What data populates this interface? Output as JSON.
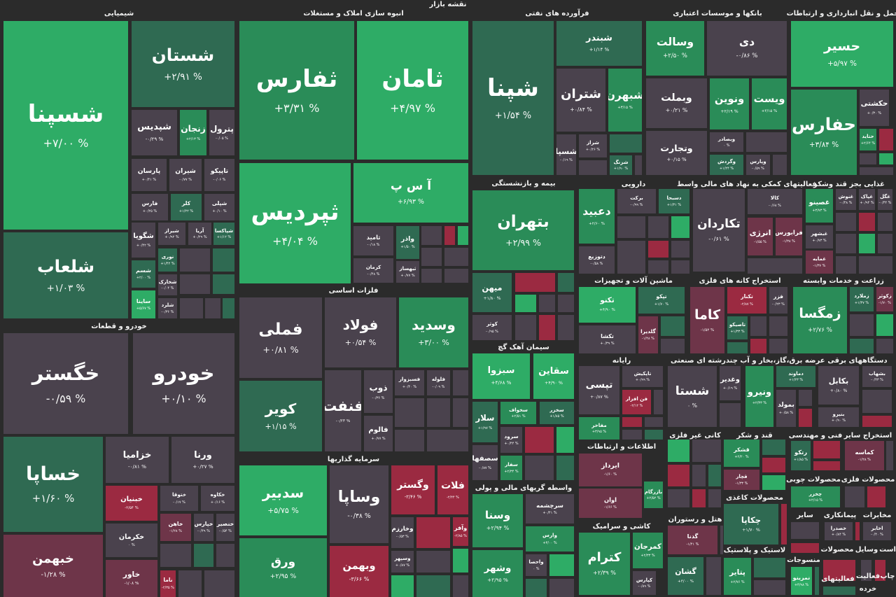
{
  "page_title": "نقشه بازار",
  "colors": {
    "strong-up": "#2eac66",
    "up": "#2a8c58",
    "mild-up": "#2f6a52",
    "neutral": "#4a424d",
    "mild-down": "#6e3549",
    "down": "#9b2a41"
  },
  "sectors": [
    {
      "title": "شیمیایی",
      "stocks": [
        {
          "name": "شسپنا",
          "change": "+۷/۰۰ %",
          "trend": "strong-up"
        },
        {
          "name": "شستان",
          "change": "+۲/۹۱ %",
          "trend": "mild-up"
        },
        {
          "name": "شلعاب",
          "change": "+۱/۰۳ %",
          "trend": "mild-up"
        },
        {
          "name": "شپدیس",
          "change": "-۰/۲۹ %",
          "trend": "neutral"
        },
        {
          "name": "زنجان",
          "change": "+۲/۱۳ %",
          "trend": "up"
        },
        {
          "name": "پترول",
          "change": "-۰/۰۵ %",
          "trend": "neutral"
        },
        {
          "name": "پارسان",
          "change": "+۰/۴۱ %",
          "trend": "neutral"
        },
        {
          "name": "شیران",
          "change": "-۰/۷۷ %",
          "trend": "neutral"
        },
        {
          "name": "تاپیکو",
          "change": "-۰/۰۶ %",
          "trend": "neutral"
        },
        {
          "name": "فارس",
          "change": "+۰/۲۵ %",
          "trend": "neutral"
        },
        {
          "name": "کلر",
          "change": "+۱/۲۲ %",
          "trend": "mild-up"
        },
        {
          "name": "شپلی",
          "change": "+۰/۱۰ %",
          "trend": "neutral"
        },
        {
          "name": "شگویا",
          "change": "+۰/۴۲ %",
          "trend": "neutral"
        },
        {
          "name": "شیراز",
          "change": "+۰/۹۲ %",
          "trend": "neutral"
        },
        {
          "name": "آریا",
          "change": "+۰/۲۹ %",
          "trend": "neutral"
        },
        {
          "name": "شپاکسا",
          "change": "+۱/۱۲ %",
          "trend": "mild-up"
        },
        {
          "name": "شسم",
          "change": "+۲/۰۰ %",
          "trend": "mild-up"
        },
        {
          "name": "نوری",
          "change": "+۱/۴۲ %",
          "trend": "mild-up"
        },
        {
          "name": "شخارک",
          "change": "-۰/۰۴ %",
          "trend": "neutral"
        },
        {
          "name": "ساینا",
          "change": "+۵/۶۷ %",
          "trend": "strong-up"
        },
        {
          "name": "شلرد",
          "change": "-۰/۳۶ %",
          "trend": "neutral"
        }
      ]
    },
    {
      "title": "خودرو و قطعات",
      "stocks": [
        {
          "name": "خگستر",
          "change": "-۰/۵۹ %",
          "trend": "neutral"
        },
        {
          "name": "خودرو",
          "change": "+۰/۱۰ %",
          "trend": "neutral"
        },
        {
          "name": "خساپا",
          "change": "+۱/۶۰ %",
          "trend": "mild-up"
        },
        {
          "name": "خبهمن",
          "change": "-۱/۲۸ %",
          "trend": "mild-down"
        },
        {
          "name": "خزامیا",
          "change": "-۰/۸۱ %",
          "trend": "neutral"
        },
        {
          "name": "ورنا",
          "change": "+۰/۲۷ %",
          "trend": "neutral"
        },
        {
          "name": "خبنیان",
          "change": "-۲/۵۴ %",
          "trend": "down"
        },
        {
          "name": "ختوقا",
          "change": "-۰/۱۷ %",
          "trend": "neutral"
        },
        {
          "name": "خکاوه",
          "change": "+۰/۱۶ %",
          "trend": "neutral"
        },
        {
          "name": "خکرمان",
          "change": "۰ %",
          "trend": "neutral"
        },
        {
          "name": "خاهن",
          "change": "-۱/۲۸ %",
          "trend": "mild-down"
        },
        {
          "name": "خپارس",
          "change": "-۰/۴۹ %",
          "trend": "neutral"
        },
        {
          "name": "خنصیر",
          "change": "-۰/۵۴ %",
          "trend": "neutral"
        },
        {
          "name": "خاور",
          "change": "-۱/۰۸ %",
          "trend": "mild-down"
        },
        {
          "name": "ناما",
          "change": "-۲/۳۵ %",
          "trend": "down"
        }
      ]
    },
    {
      "title": "انبوه سازی املاک و مستغلات",
      "stocks": [
        {
          "name": "ثفارس",
          "change": "+۳/۳۱ %",
          "trend": "up"
        },
        {
          "name": "ثامان",
          "change": "+۴/۹۷ %",
          "trend": "strong-up"
        },
        {
          "name": "ثپردیس",
          "change": "+۴/۰۴ %",
          "trend": "strong-up"
        },
        {
          "name": "آ س پ",
          "change": "+۶/۹۳ %",
          "trend": "strong-up"
        },
        {
          "name": "ثامید",
          "change": "-۰/۱۸ %",
          "trend": "neutral"
        },
        {
          "name": "واذر",
          "change": "+۱/۵۰ %",
          "trend": "mild-up"
        },
        {
          "name": "کرمان",
          "change": "-۰/۴۸ %",
          "trend": "neutral"
        },
        {
          "name": "ثبهساز",
          "change": "+۰/۷۷ %",
          "trend": "neutral"
        }
      ]
    },
    {
      "title": "فلزات اساسی",
      "stocks": [
        {
          "name": "فملی",
          "change": "+۰/۸۱ %",
          "trend": "neutral"
        },
        {
          "name": "فولاد",
          "change": "+۰/۵۴ %",
          "trend": "neutral"
        },
        {
          "name": "وسدید",
          "change": "+۳/۰۰ %",
          "trend": "up"
        },
        {
          "name": "کویر",
          "change": "+۱/۱۵ %",
          "trend": "mild-up"
        },
        {
          "name": "فنفت",
          "change": "-۰/۲۳ %",
          "trend": "neutral"
        },
        {
          "name": "ذوب",
          "change": "-۰/۳۶ %",
          "trend": "neutral"
        },
        {
          "name": "فسبزوار",
          "change": "+۰/۴۰ %",
          "trend": "neutral"
        },
        {
          "name": "فلوله",
          "change": "-۰/۰۹ %",
          "trend": "neutral"
        },
        {
          "name": "فالوم",
          "change": "+۰/۷۷ %",
          "trend": "neutral"
        }
      ]
    },
    {
      "title": "سرمایه گذاریها",
      "stocks": [
        {
          "name": "سدبیر",
          "change": "+۵/۷۵ %",
          "trend": "strong-up"
        },
        {
          "name": "ورق",
          "change": "+۲/۹۵ %",
          "trend": "up"
        },
        {
          "name": "وساپا",
          "change": "-۰/۳۸ %",
          "trend": "neutral"
        },
        {
          "name": "وبهمن",
          "change": "-۳/۶۶ %",
          "trend": "down"
        },
        {
          "name": "وگستر",
          "change": "-۳/۴۶ %",
          "trend": "down"
        },
        {
          "name": "فلات",
          "change": "-۲/۴۴ %",
          "trend": "down"
        },
        {
          "name": "وخارزم",
          "change": "-۰/۵۳ %",
          "trend": "neutral"
        },
        {
          "name": "وآفر",
          "change": "-۲/۸۵ %",
          "trend": "down"
        },
        {
          "name": "وسپهر",
          "change": "+۰/۸۷ %",
          "trend": "neutral"
        }
      ]
    },
    {
      "title": "فرآورده های نفتی",
      "stocks": [
        {
          "name": "شپنا",
          "change": "+۱/۵۴ %",
          "trend": "mild-up"
        },
        {
          "name": "شبندر",
          "change": "+۱/۱۴ %",
          "trend": "mild-up"
        },
        {
          "name": "شتران",
          "change": "+۰/۸۴ %",
          "trend": "neutral"
        },
        {
          "name": "شبهرن",
          "change": "+۳/۱۵ %",
          "trend": "up"
        },
        {
          "name": "شسپا",
          "change": "-۰/۱۹ %",
          "trend": "neutral"
        },
        {
          "name": "شراز",
          "change": "+۰/۲۶ %",
          "trend": "neutral"
        },
        {
          "name": "شزنگ",
          "change": "+۱/۹۰ %",
          "trend": "mild-up"
        }
      ]
    },
    {
      "title": "بانکها و موسسات اعتباری",
      "stocks": [
        {
          "name": "وسالت",
          "change": "+۲/۵۰ %",
          "trend": "up"
        },
        {
          "name": "دی",
          "change": "-۰/۸۶ %",
          "trend": "neutral"
        },
        {
          "name": "وبملت",
          "change": "+۰/۲۱ %",
          "trend": "neutral"
        },
        {
          "name": "ونوین",
          "change": "+۲/۱۹ %",
          "trend": "up"
        },
        {
          "name": "ویست",
          "change": "+۳/۱۵ %",
          "trend": "up"
        },
        {
          "name": "وتجارت",
          "change": "+۰/۱۵ %",
          "trend": "neutral"
        },
        {
          "name": "وبصادر",
          "change": "۰ %",
          "trend": "neutral"
        },
        {
          "name": "وگردش",
          "change": "+۱/۲۴ %",
          "trend": "mild-up"
        },
        {
          "name": "وپارس",
          "change": "-۰/۵۹ %",
          "trend": "neutral"
        }
      ]
    },
    {
      "title": "حمل و نقل انبارداری و ارتباطات",
      "stocks": [
        {
          "name": "حسیر",
          "change": "+۵/۹۷ %",
          "trend": "strong-up"
        },
        {
          "name": "حفارس",
          "change": "+۳/۸۴ %",
          "trend": "up"
        },
        {
          "name": "حکشتی",
          "change": "+۰/۳۰ %",
          "trend": "neutral"
        },
        {
          "name": "حتاید",
          "change": "+۲/۶۴ %",
          "trend": "up"
        }
      ]
    },
    {
      "title": "بیمه و بازنشستگی",
      "stocks": [
        {
          "name": "بتهران",
          "change": "+۲/۹۹ %",
          "trend": "up"
        },
        {
          "name": "میهن",
          "change": "+۱/۸۰ %",
          "trend": "mild-up"
        },
        {
          "name": "کوثر",
          "change": "-۰/۹۵ %",
          "trend": "neutral"
        }
      ]
    },
    {
      "title": "سیمان آهک گچ",
      "stocks": [
        {
          "name": "سبزوا",
          "change": "+۴/۶۸ %",
          "trend": "strong-up"
        },
        {
          "name": "سقاین",
          "change": "+۴/۹۰ %",
          "trend": "strong-up"
        },
        {
          "name": "سلار",
          "change": "+۱/۹۷ %",
          "trend": "mild-up"
        },
        {
          "name": "سخواف",
          "change": "+۲/۵۱ %",
          "trend": "up"
        },
        {
          "name": "سخزر",
          "change": "+۱/۸۵ %",
          "trend": "mild-up"
        },
        {
          "name": "سرود",
          "change": "+۰/۴۴ %",
          "trend": "neutral"
        },
        {
          "name": "سصفها",
          "change": "-۰/۸۷ %",
          "trend": "neutral"
        },
        {
          "name": "سفار",
          "change": "+۲/۳۴ %",
          "trend": "up"
        }
      ]
    },
    {
      "title": "واسطه گریهای مالی و پولی",
      "stocks": [
        {
          "name": "وسنا",
          "change": "+۲/۹۴ %",
          "trend": "up"
        },
        {
          "name": "سرچشمه",
          "change": "+۰/۴۱ %",
          "trend": "neutral"
        },
        {
          "name": "وارس",
          "change": "+۳/۰۰ %",
          "trend": "up"
        },
        {
          "name": "وشهر",
          "change": "+۲/۹۵ %",
          "trend": "up"
        },
        {
          "name": "واحصا",
          "change": "۰ %",
          "trend": "neutral"
        }
      ]
    },
    {
      "title": "دارویی",
      "stocks": [
        {
          "name": "دعبید",
          "change": "+۲/۶۰ %",
          "trend": "up"
        },
        {
          "name": "برکت",
          "change": "-۰/۹۹ %",
          "trend": "neutral"
        },
        {
          "name": "دسبحا",
          "change": "+۱/۳۱ %",
          "trend": "mild-up"
        },
        {
          "name": "دتوزیع",
          "change": "-۰/۵۸ %",
          "trend": "neutral"
        }
      ]
    },
    {
      "title": "فعالیتهای کمکی به نهاد های مالی واسط",
      "stocks": [
        {
          "name": "تکاردان",
          "change": "-۰/۶۱ %",
          "trend": "neutral"
        },
        {
          "name": "کالا",
          "change": "-۰/۶۸ %",
          "trend": "neutral"
        },
        {
          "name": "انرژی",
          "change": "-۱/۵۵ %",
          "trend": "mild-down"
        },
        {
          "name": "فرابورس",
          "change": "-۱/۳۸ %",
          "trend": "mild-down"
        }
      ]
    },
    {
      "title": "غذایی بجز قند وشکر",
      "stocks": [
        {
          "name": "غصینو",
          "change": "+۳/۷۳ %",
          "trend": "up"
        },
        {
          "name": "غنوش",
          "change": "-۰/۴۸ %",
          "trend": "neutral"
        },
        {
          "name": "غپاک",
          "change": "+۰/۹۴ %",
          "trend": "neutral"
        },
        {
          "name": "غگل",
          "change": "-۰/۴۴ %",
          "trend": "neutral"
        },
        {
          "name": "غبشهر",
          "change": "+۰/۷۳ %",
          "trend": "neutral"
        },
        {
          "name": "غمایه",
          "change": "-۱/۳۷ %",
          "trend": "mild-down"
        }
      ]
    },
    {
      "title": "ماشین آلات و تجهیزات",
      "stocks": [
        {
          "name": "تکنو",
          "change": "+۴/۹۰ %",
          "trend": "strong-up"
        },
        {
          "name": "تپکو",
          "change": "+۱/۷۰ %",
          "trend": "mild-up"
        },
        {
          "name": "تکشا",
          "change": "+۰/۳۹ %",
          "trend": "neutral"
        },
        {
          "name": "گلدیرا",
          "change": "-۱/۴۸ %",
          "trend": "mild-down"
        }
      ]
    },
    {
      "title": "استخراج کانه های فلزی",
      "stocks": [
        {
          "name": "کاما",
          "change": "-۱/۵۲ %",
          "trend": "mild-down"
        },
        {
          "name": "تکنار",
          "change": "-۲/۸۷ %",
          "trend": "down"
        },
        {
          "name": "فزر",
          "change": "-۰/۲۳ %",
          "trend": "neutral"
        },
        {
          "name": "تاصیکو",
          "change": "+۱/۳۳ %",
          "trend": "mild-up"
        }
      ]
    },
    {
      "title": "زراعت و خدمات وابسته",
      "stocks": [
        {
          "name": "زمگسا",
          "change": "+۲/۷۶ %",
          "trend": "up"
        },
        {
          "name": "زملارد",
          "change": "+۱/۳۷ %",
          "trend": "mild-up"
        },
        {
          "name": "زکوثر",
          "change": "-۱/۷۰ %",
          "trend": "mild-down"
        }
      ]
    },
    {
      "title": "رایانه",
      "stocks": [
        {
          "name": "تپسی",
          "change": "+۰/۸۷ %",
          "trend": "neutral"
        },
        {
          "name": "تاپکیش",
          "change": "+۰/۹۹ %",
          "trend": "neutral"
        },
        {
          "name": "فن افزار",
          "change": "-۲/۱۲ %",
          "trend": "down"
        },
        {
          "name": "مفاخر",
          "change": "+۳/۹۵ %",
          "trend": "up"
        }
      ]
    },
    {
      "title": "چندرشته ای صنعتی",
      "stocks": [
        {
          "name": "شستا",
          "change": "۰ %",
          "trend": "neutral"
        },
        {
          "name": "وغدیر",
          "change": "+۰/۱۹ %",
          "trend": "neutral"
        }
      ]
    },
    {
      "title": "عرضه برق،گاز،بخار و آب",
      "stocks": [
        {
          "name": "ونیرو",
          "change": "+۲/۳۳ %",
          "trend": "up"
        },
        {
          "name": "دماوند",
          "change": "+۱/۲۳ %",
          "trend": "mild-up"
        },
        {
          "name": "بمولد",
          "change": "+۰/۵۸ %",
          "trend": "neutral"
        }
      ]
    },
    {
      "title": "دستگاههای برقی",
      "stocks": [
        {
          "name": "بکابل",
          "change": "+۰/۸۰ %",
          "trend": "neutral"
        },
        {
          "name": "بشهاب",
          "change": "-۰/۴۳ %",
          "trend": "neutral"
        },
        {
          "name": "بنیرو",
          "change": "+۰/۹۰ %",
          "trend": "neutral"
        }
      ]
    },
    {
      "title": "اطلاعات و ارتباطات",
      "stocks": [
        {
          "name": "ایرداز",
          "change": "-۱/۶۰ %",
          "trend": "mild-down"
        },
        {
          "name": "اوان",
          "change": "-۱/۶۶ %",
          "trend": "mild-down"
        },
        {
          "name": "بازرگام",
          "change": "+۲/۵۲ %",
          "trend": "up"
        }
      ]
    },
    {
      "title": "کاشی و سرامیک",
      "stocks": [
        {
          "name": "کترام",
          "change": "+۲/۳۹ %",
          "trend": "up"
        },
        {
          "name": "کمرجان",
          "change": "+۲/۳۳ %",
          "trend": "up"
        },
        {
          "name": "کپارس",
          "change": "-۰/۸۹ %",
          "trend": "neutral"
        }
      ]
    },
    {
      "title": "کانی غیر فلزی",
      "stocks": []
    },
    {
      "title": "هتل و رستوران",
      "stocks": [
        {
          "name": "گدنا",
          "change": "-۱/۴۱ %",
          "trend": "mild-down"
        },
        {
          "name": "گشان",
          "change": "+۳/۰۰ %",
          "trend": "mild-up"
        }
      ]
    },
    {
      "title": "قند و شکر",
      "stocks": [
        {
          "name": "قشکر",
          "change": "+۲/۲۰ %",
          "trend": "up"
        },
        {
          "name": "قچار",
          "change": "-۱/۳۳ %",
          "trend": "mild-down"
        }
      ]
    },
    {
      "title": "محصولات کاغذی",
      "stocks": [
        {
          "name": "چکاپا",
          "change": "+۱/۷۰ %",
          "trend": "mild-up"
        }
      ]
    },
    {
      "title": "لاستیک و پلاستیک",
      "stocks": [
        {
          "name": "پتایر",
          "change": "+۲/۷۶ %",
          "trend": "up"
        }
      ]
    },
    {
      "title": "فنی و مهندسی",
      "stocks": [
        {
          "name": "رتکو",
          "change": "+۱/۸۵ %",
          "trend": "mild-up"
        }
      ]
    },
    {
      "title": "استخراج سایر",
      "stocks": [
        {
          "name": "کماسه",
          "change": "-۱/۲۸ %",
          "trend": "mild-down"
        }
      ]
    },
    {
      "title": "محصولات چوبی",
      "stocks": [
        {
          "name": "چخزر",
          "change": "+۲/۱۵ %",
          "trend": "up"
        }
      ]
    },
    {
      "title": "محصولات فلزی",
      "stocks": []
    },
    {
      "title": "سایر",
      "stocks": []
    },
    {
      "title": "پیمانکاری",
      "stocks": [
        {
          "name": "خصدرا",
          "change": "+۰/۸۴ %",
          "trend": "neutral"
        }
      ]
    },
    {
      "title": "مخابرات",
      "stocks": [
        {
          "name": "اخابر",
          "change": "-۰/۴۰ %",
          "trend": "neutral"
        }
      ]
    },
    {
      "title": "منسوجات",
      "stocks": [
        {
          "name": "نمرینو",
          "change": "+۴/۹۸ %",
          "trend": "strong-up"
        }
      ]
    },
    {
      "title": "محصولات",
      "stocks": []
    },
    {
      "title": "وسایل",
      "stocks": []
    },
    {
      "title": "است",
      "stocks": []
    },
    {
      "title": "فعالیتهای",
      "stocks": []
    },
    {
      "title": "چاپ",
      "stocks": []
    },
    {
      "title": "فعالیت",
      "stocks": []
    },
    {
      "title": "خرده",
      "stocks": []
    }
  ]
}
